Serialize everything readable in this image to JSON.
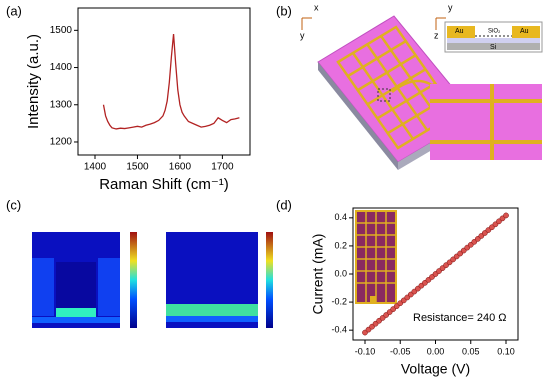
{
  "panels": [
    "(a)",
    "(b)",
    "(c)",
    "(d)"
  ],
  "schematic": {
    "top_axes": [
      "x",
      "y"
    ],
    "side_axes": [
      "z",
      "y"
    ],
    "layers": [
      "Au",
      "Au",
      "SiO₂",
      "Si"
    ]
  },
  "chart_data": [
    {
      "type": "line",
      "x_label": "Raman Shift (cm⁻¹)",
      "y_label": "Intensity (a.u.)",
      "color": "#b22222",
      "x": [
        1420,
        1425,
        1430,
        1435,
        1440,
        1450,
        1460,
        1470,
        1480,
        1490,
        1500,
        1510,
        1520,
        1530,
        1540,
        1550,
        1560,
        1565,
        1570,
        1575,
        1580,
        1585,
        1590,
        1595,
        1600,
        1605,
        1610,
        1620,
        1630,
        1640,
        1650,
        1660,
        1670,
        1680,
        1690,
        1700,
        1710,
        1720,
        1730,
        1740
      ],
      "values": [
        1300,
        1270,
        1255,
        1245,
        1238,
        1235,
        1237,
        1236,
        1238,
        1240,
        1242,
        1240,
        1245,
        1248,
        1252,
        1258,
        1270,
        1285,
        1310,
        1360,
        1430,
        1490,
        1410,
        1340,
        1300,
        1280,
        1270,
        1255,
        1250,
        1245,
        1240,
        1242,
        1245,
        1250,
        1265,
        1258,
        1252,
        1260,
        1262,
        1265
      ],
      "xlim": [
        1360,
        1765
      ],
      "xticks": [
        1400,
        1500,
        1600,
        1700
      ],
      "ylim": [
        1165,
        1560
      ],
      "yticks": [
        1200,
        1300,
        1400,
        1500
      ]
    },
    {
      "type": "scatter",
      "x_label": "Voltage (V)",
      "y_label": "Current (mA)",
      "color": "#d9534f",
      "annotation": "Resistance= 240 Ω",
      "x": [
        -0.1,
        -0.095,
        -0.09,
        -0.085,
        -0.08,
        -0.075,
        -0.07,
        -0.065,
        -0.06,
        -0.055,
        -0.05,
        -0.045,
        -0.04,
        -0.035,
        -0.03,
        -0.025,
        -0.02,
        -0.015,
        -0.01,
        -0.005,
        0,
        0.005,
        0.01,
        0.015,
        0.02,
        0.025,
        0.03,
        0.035,
        0.04,
        0.045,
        0.05,
        0.055,
        0.06,
        0.065,
        0.07,
        0.075,
        0.08,
        0.085,
        0.09,
        0.095,
        0.1
      ],
      "values": [
        -0.417,
        -0.396,
        -0.375,
        -0.354,
        -0.333,
        -0.313,
        -0.292,
        -0.271,
        -0.25,
        -0.229,
        -0.208,
        -0.188,
        -0.167,
        -0.146,
        -0.125,
        -0.104,
        -0.083,
        -0.063,
        -0.042,
        -0.021,
        0,
        0.021,
        0.042,
        0.063,
        0.083,
        0.104,
        0.125,
        0.146,
        0.167,
        0.188,
        0.208,
        0.229,
        0.25,
        0.271,
        0.292,
        0.313,
        0.333,
        0.354,
        0.375,
        0.396,
        0.417
      ],
      "xlim": [
        -0.117,
        0.117
      ],
      "xticks": [
        {
          "value": -0.1,
          "label": "-0.10"
        },
        {
          "value": -0.05,
          "label": "-0.05"
        },
        {
          "value": 0,
          "label": "0.00"
        },
        {
          "value": 0.05,
          "label": "0.05"
        },
        {
          "value": 0.1,
          "label": "0.10"
        }
      ],
      "ylim": [
        -0.47,
        0.47
      ],
      "yticks": [
        -0.4,
        -0.2,
        {
          "value": 0,
          "label": "0.0"
        },
        0.2,
        0.4
      ]
    }
  ]
}
